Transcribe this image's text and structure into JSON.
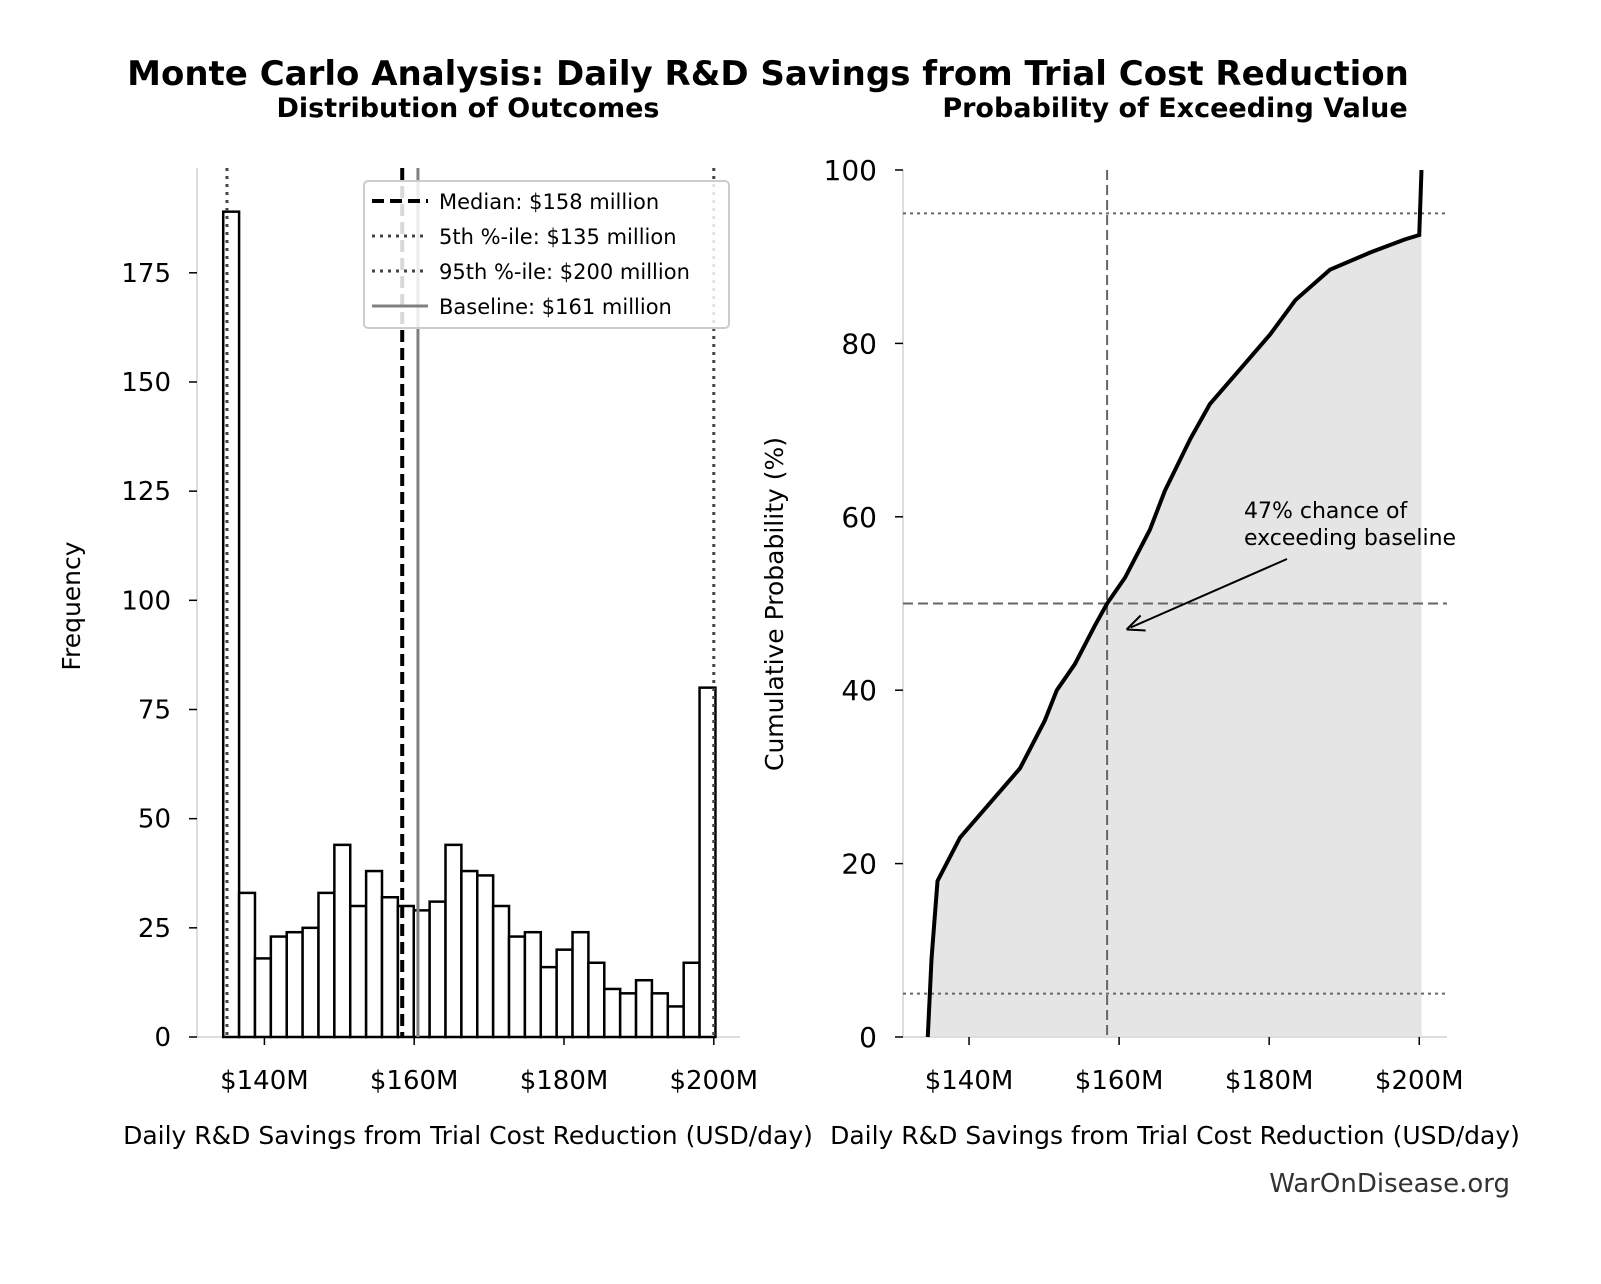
{
  "title": "Monte Carlo Analysis: Daily R&D Savings from Trial Cost Reduction",
  "watermark": "WarOnDisease.org",
  "chart_data": [
    {
      "type": "bar",
      "title": "Distribution of Outcomes",
      "xlabel": "Daily R&D Savings from Trial Cost Reduction (USD/day)",
      "ylabel": "Frequency",
      "xlim": [
        131,
        203.5
      ],
      "ylim": [
        0,
        199
      ],
      "xticks": [
        {
          "v": 140,
          "label": "$140M"
        },
        {
          "v": 160,
          "label": "$160M"
        },
        {
          "v": 180,
          "label": "$180M"
        },
        {
          "v": 200,
          "label": "$200M"
        }
      ],
      "yticks": [
        0,
        25,
        50,
        75,
        100,
        125,
        150,
        175
      ],
      "bin_start": 134.5,
      "bin_width": 2.12,
      "values": [
        189,
        33,
        18,
        23,
        24,
        25,
        33,
        44,
        30,
        38,
        32,
        30,
        29,
        31,
        44,
        38,
        37,
        30,
        23,
        24,
        16,
        20,
        24,
        17,
        11,
        10,
        13,
        10,
        7,
        17,
        80
      ],
      "lines": [
        {
          "label": "Median: $158 million",
          "x": 158.4,
          "style": "dashed",
          "color": "#000000"
        },
        {
          "label": "5th %-ile: $135 million",
          "x": 135,
          "style": "dotted",
          "color": "#444444"
        },
        {
          "label": "95th %-ile: $200 million",
          "x": 200,
          "style": "dotted",
          "color": "#444444"
        },
        {
          "label": "Baseline: $161 million",
          "x": 160.5,
          "style": "solid",
          "color": "#808080"
        }
      ],
      "legend": "top-right"
    },
    {
      "type": "line",
      "title": "Probability of Exceeding Value",
      "xlabel": "Daily R&D Savings from Trial Cost Reduction (USD/day)",
      "ylabel": "Cumulative Probability (%)",
      "xlim": [
        131.2,
        203.7
      ],
      "ylim": [
        0,
        100
      ],
      "xticks": [
        {
          "v": 140,
          "label": "$140M"
        },
        {
          "v": 160,
          "label": "$160M"
        },
        {
          "v": 180,
          "label": "$180M"
        },
        {
          "v": 200,
          "label": "$200M"
        }
      ],
      "yticks": [
        0,
        20,
        40,
        60,
        80,
        100
      ],
      "x": [
        134.5,
        135,
        135.8,
        138.8,
        142.8,
        146.8,
        150.1,
        151.7,
        154.1,
        156.8,
        158.4,
        160.8,
        164.1,
        166.1,
        169.5,
        172.1,
        176.1,
        180.1,
        183.5,
        188.1,
        193.5,
        198.1,
        200,
        200.3
      ],
      "y": [
        0,
        9,
        18,
        23,
        27,
        31,
        36.5,
        40,
        43,
        47.5,
        50,
        53,
        58.5,
        63,
        69,
        73,
        77,
        81,
        85,
        88.5,
        90.5,
        92,
        92.5,
        100
      ],
      "fill": "#e5e5e5",
      "ref_hlines": [
        {
          "y": 50,
          "style": "dashed"
        },
        {
          "y": 5,
          "style": "dotted"
        },
        {
          "y": 95,
          "style": "dotted"
        }
      ],
      "ref_vline": {
        "x": 158.4,
        "style": "dashed"
      },
      "annotation": {
        "line1": "47% chance of",
        "line2": "exceeding baseline",
        "arrow_to": {
          "x": 161,
          "y": 47
        }
      }
    }
  ]
}
